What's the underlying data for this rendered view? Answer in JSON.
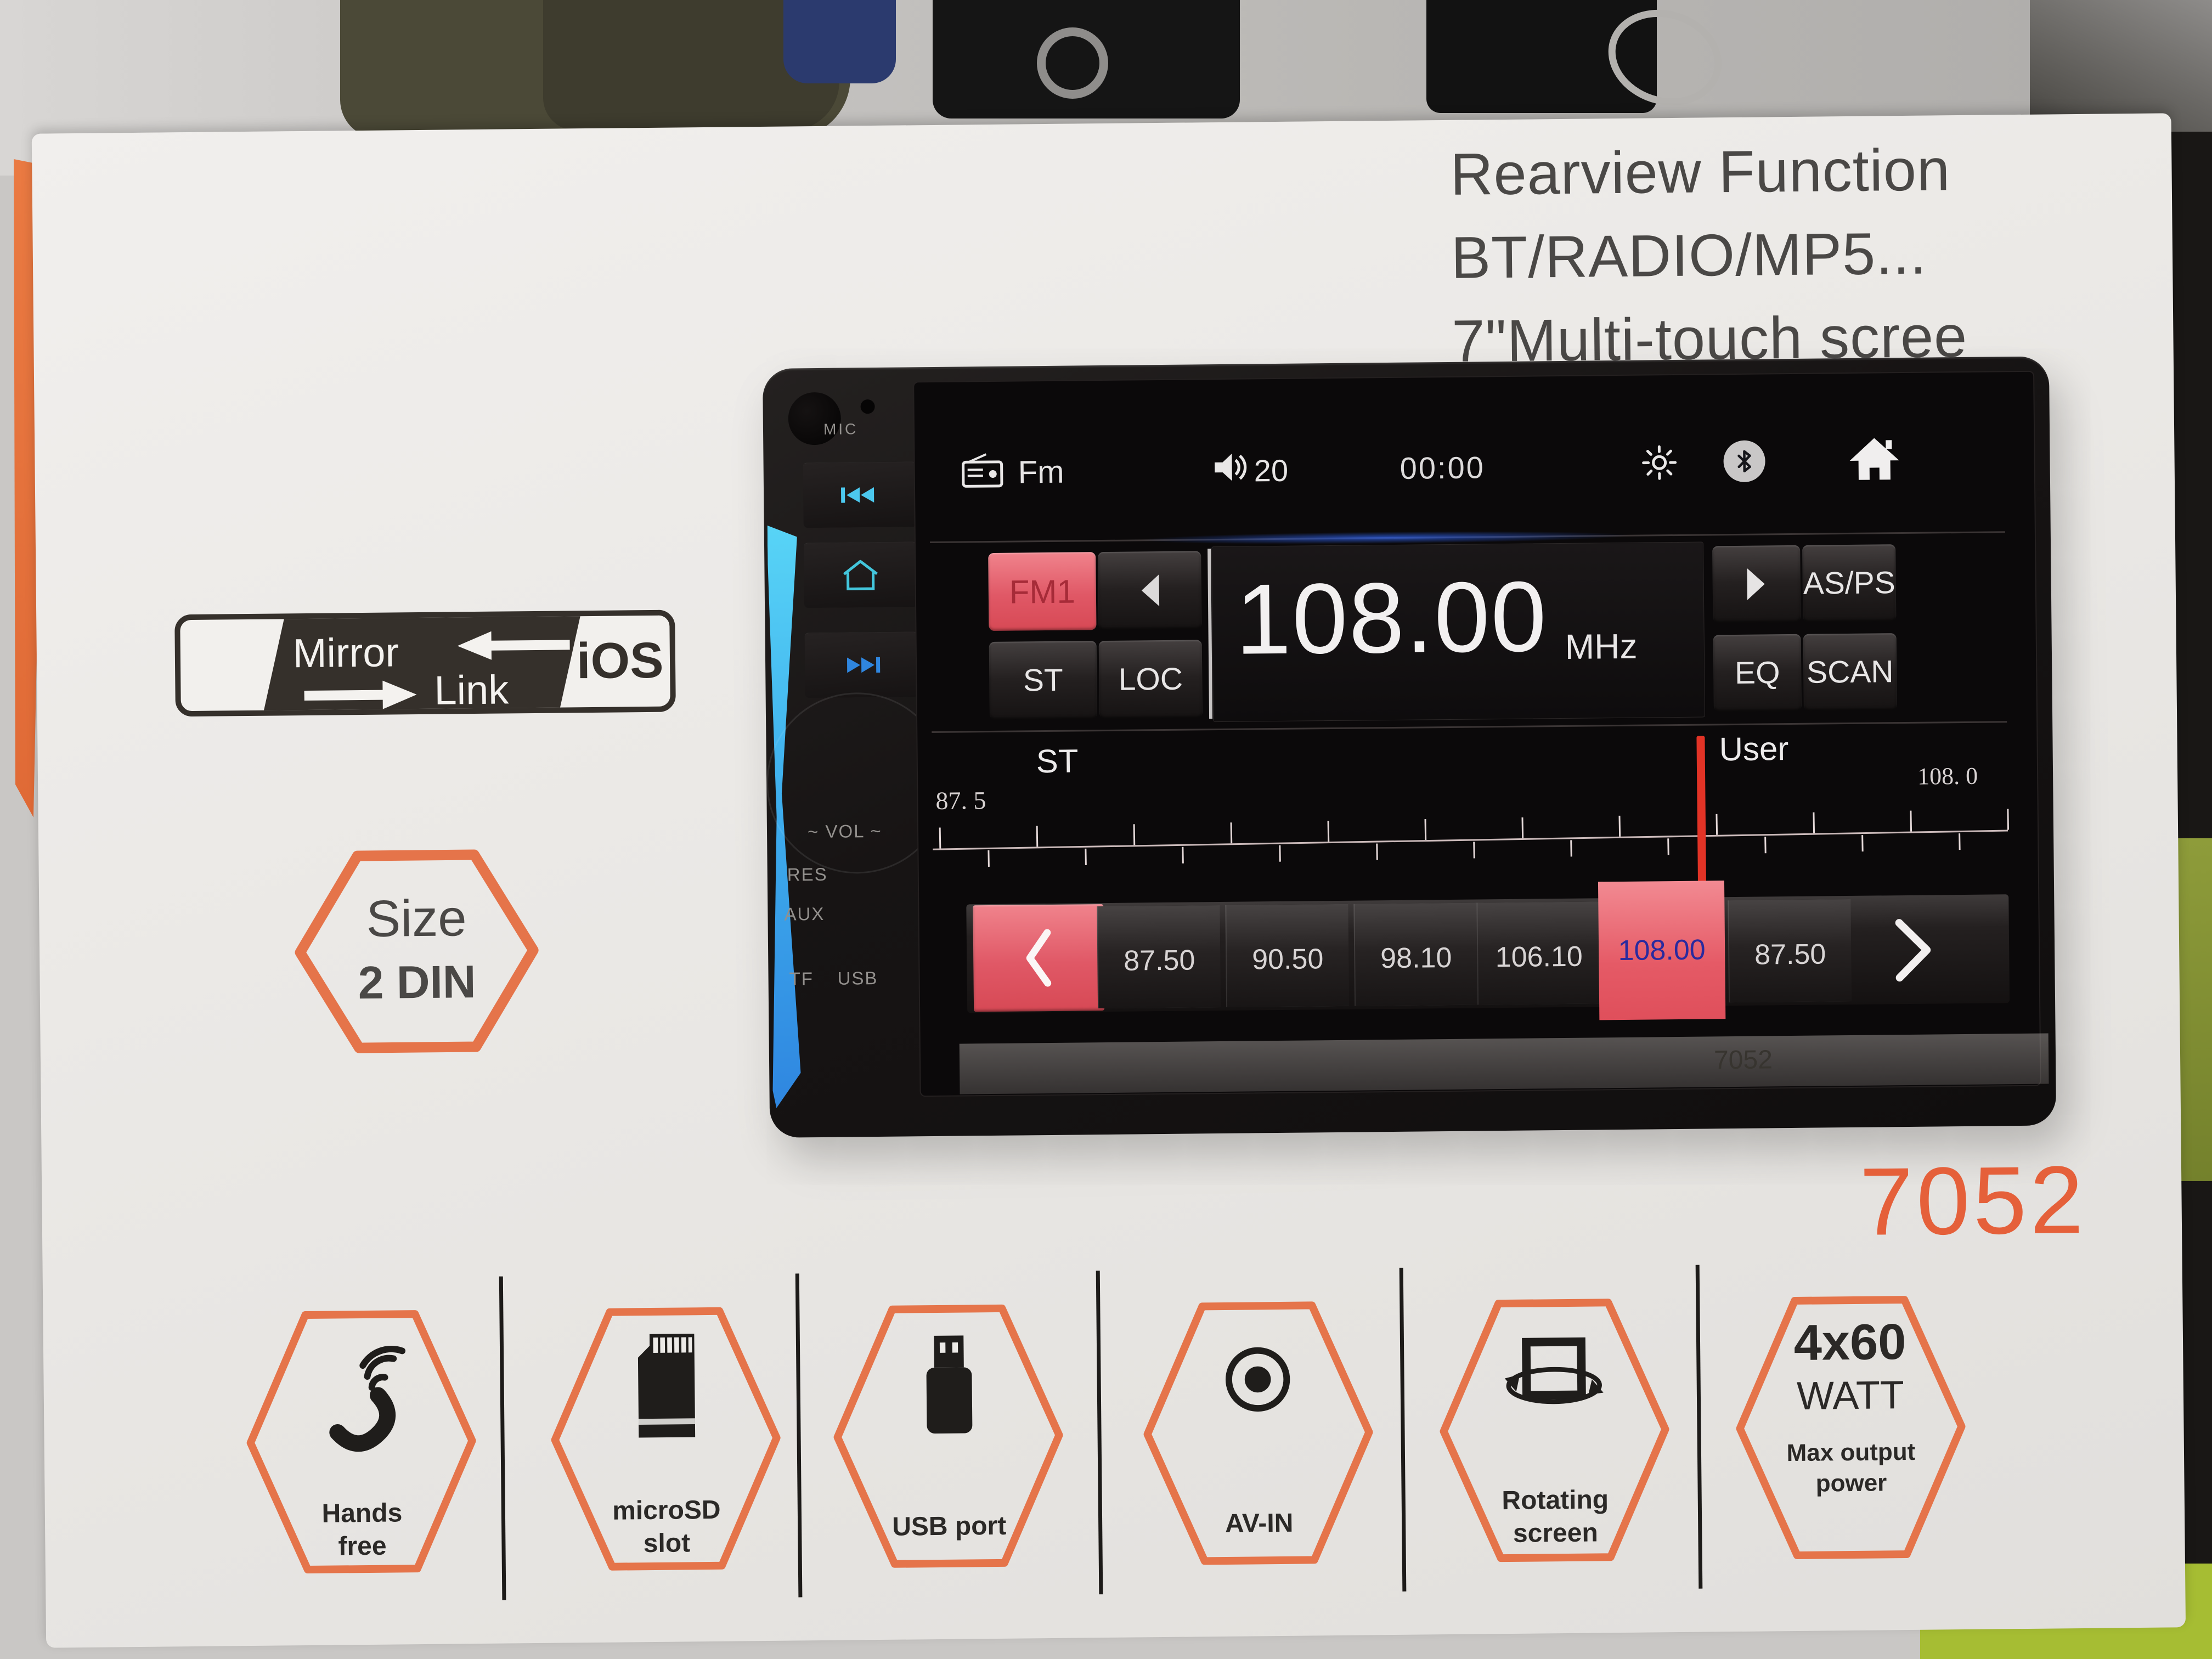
{
  "box": {
    "headline": {
      "line1": "Rearview Function",
      "line2": "BT/RADIO/MP5...",
      "line3": "7\"Multi-touch scree"
    },
    "mirrorlink_badge": {
      "mirror": "Mirror",
      "link": "Link",
      "ios": "iOS"
    },
    "size_badge": {
      "title": "Size",
      "value": "2 DIN"
    },
    "model_number": "7052",
    "features": [
      {
        "icon": "hands-free-icon",
        "line1": "Hands",
        "line2": "free"
      },
      {
        "icon": "microsd-icon",
        "line1": "microSD",
        "line2": "slot"
      },
      {
        "icon": "usb-icon",
        "line1": "USB port"
      },
      {
        "icon": "av-in-icon",
        "line1": "AV-IN"
      },
      {
        "icon": "rotating-screen-icon",
        "line1": "Rotating",
        "line2": "screen"
      },
      {
        "icon": "max-power-icon",
        "line1": "4x60",
        "line2": "WATT",
        "line3": "Max output",
        "line4": "power"
      }
    ]
  },
  "unit": {
    "mic_label": "MIC",
    "vol_label": "VOL",
    "res_label": "RES",
    "aux_label": "AUX",
    "tf_label": "TF",
    "usb_label": "USB",
    "bottom_model": "7052",
    "screen": {
      "status_bar": {
        "source": "Fm",
        "volume": "20",
        "time": "00:00"
      },
      "tuner": {
        "band": "FM1",
        "st": "ST",
        "loc": "LOC",
        "asps": "AS/PS",
        "eq": "EQ",
        "scan": "SCAN",
        "frequency": "108.00",
        "frequency_unit": "MHz"
      },
      "scale": {
        "left_label": "ST",
        "right_label": "User",
        "min": "87. 5",
        "max": "108. 0"
      },
      "presets": {
        "items": [
          "87.50",
          "90.50",
          "98.10",
          "106.10",
          "108.00",
          "87.50"
        ],
        "active_index": 4
      }
    }
  },
  "colors": {
    "accent_orange": "#e5744a",
    "model_orange": "#e5603a",
    "badge_red": "#e05866",
    "active_preset_text": "#2a2a9e",
    "indicator_red": "#e23326",
    "side_button_blue": "#48c6ec"
  }
}
